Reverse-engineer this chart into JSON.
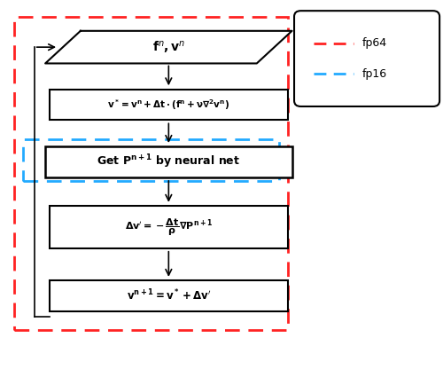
{
  "fig_width": 5.0,
  "fig_height": 4.34,
  "dpi": 100,
  "background_color": "#ffffff",
  "red_color": "#ff2222",
  "blue_color": "#22aaff",
  "box_edge_color": "#000000",
  "box1_text": "$\\mathbf{f}^n\\mathbf{,}\\, \\mathbf{v}^n$",
  "box2_text": "$\\mathbf{v^* = v^n + \\Delta t \\cdot (f^n + \\nu\\nabla^2 v^n)}$",
  "box3_text": "Get $\\mathbf{P^{n+1}}$ by neural net",
  "box4_text": "$\\mathbf{\\Delta v^{\\prime} = -\\dfrac{\\Delta t}{\\rho}\\nabla P^{n+1}}$",
  "box5_text": "$\\mathbf{v^{n+1} = v^* + \\Delta v^{\\prime}}$",
  "legend_fp64": "fp64",
  "legend_fp16": "fp16"
}
